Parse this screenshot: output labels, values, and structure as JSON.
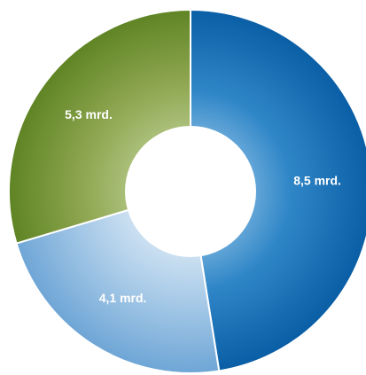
{
  "chart_data": {
    "type": "pie",
    "variant": "donut",
    "categories": [
      "8,5 mrd.",
      "4,1 mrd.",
      "5,3 mrd."
    ],
    "values": [
      8.5,
      4.1,
      5.3
    ],
    "labels": [
      "8,5 mrd.",
      "4,1 mrd.",
      "5,3 mrd."
    ],
    "unit": "mrd.",
    "title": "",
    "colors": [
      "#0a5ea5",
      "#9cc2e2",
      "#6b8b2c"
    ],
    "legend": "none"
  }
}
